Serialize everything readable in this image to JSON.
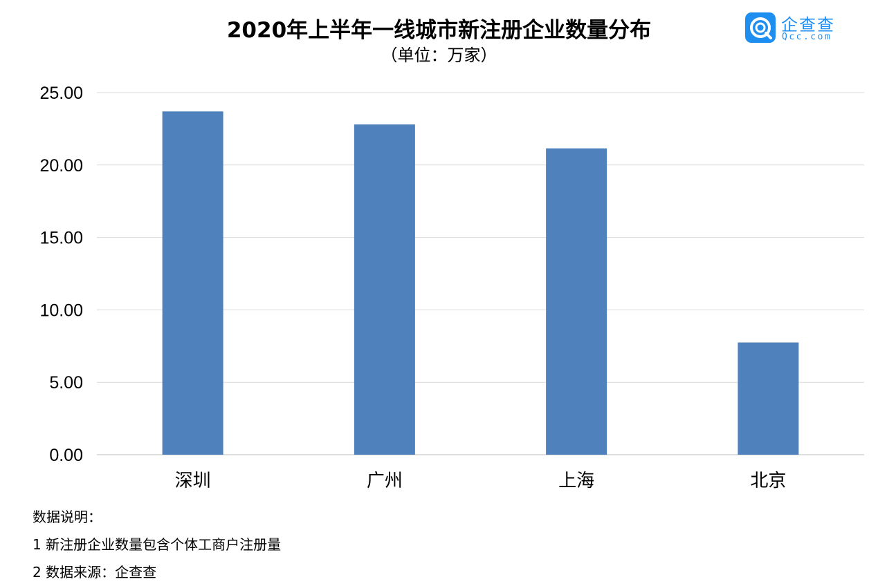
{
  "logo": {
    "name": "企查查",
    "domain": "Qcc.com",
    "color": "#1f8ef1"
  },
  "notes": {
    "heading": "数据说明：",
    "items": [
      "1 新注册企业数量包含个体工商户注册量",
      "2 数据来源：企查查"
    ]
  },
  "chart_data": {
    "type": "bar",
    "title": "2020年上半年一线城市新注册企业数量分布",
    "subtitle": "（单位：万家）",
    "categories": [
      "深圳",
      "广州",
      "上海",
      "北京"
    ],
    "values": [
      23.7,
      22.8,
      21.15,
      7.75
    ],
    "ylim": [
      0,
      25
    ],
    "yticks": [
      "0.00",
      "5.00",
      "10.00",
      "15.00",
      "20.00",
      "25.00"
    ],
    "grid": true,
    "bar_color": "#4f81bd",
    "grid_color": "#d9d9d9"
  }
}
